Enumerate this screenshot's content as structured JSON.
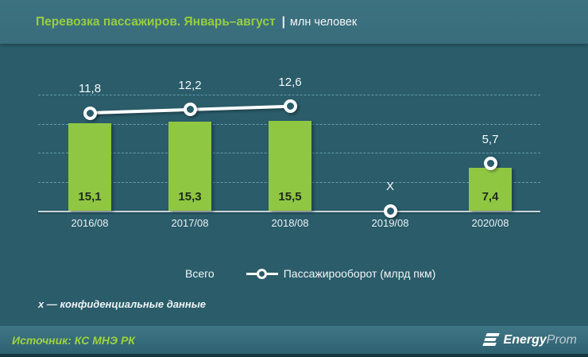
{
  "header": {
    "title": "Перевозка пассажиров. Январь–август",
    "separator": "|",
    "units": "млн человек"
  },
  "chart_data": {
    "type": "bar+line",
    "categories": [
      "2016/08",
      "2017/08",
      "2018/08",
      "2019/08",
      "2020/08"
    ],
    "series": [
      {
        "name": "Всего",
        "type": "bar",
        "values": [
          15.1,
          15.3,
          15.5,
          null,
          7.4
        ],
        "labels": [
          "15,1",
          "15,3",
          "15,5",
          "",
          "7,4"
        ],
        "color": "#8fc742"
      },
      {
        "name": "Пассажирооборот (млрд пкм)",
        "type": "line",
        "values": [
          11.8,
          12.2,
          12.6,
          null,
          5.7
        ],
        "labels": [
          "11,8",
          "12,2",
          "12,6",
          "X",
          "5,7"
        ],
        "color": "#ffffff"
      }
    ],
    "confidential_index": 3,
    "confidential_marker": "X",
    "ylim_bar": [
      0,
      20
    ],
    "ylim_line": [
      0,
      20
    ],
    "grid_values": [
      5,
      10,
      15,
      20
    ],
    "grid_style": "dashed",
    "legend_position": "bottom"
  },
  "legend": {
    "bar_label": "Всего",
    "line_label": "Пассажирооборот (млрд пкм)"
  },
  "footnote": "x — конфиденциальные данные",
  "source": "Источник: КС МНЭ РК",
  "logo": {
    "bold": "Energy",
    "light": "Prom"
  },
  "colors": {
    "background": "#2a5c6a",
    "header_band": "#3a6e7d",
    "bar_green": "#8fc742",
    "title_green": "#97ce3f",
    "line_white": "#ffffff",
    "gridline": "#82becd",
    "source_green": "#9ed43f"
  }
}
